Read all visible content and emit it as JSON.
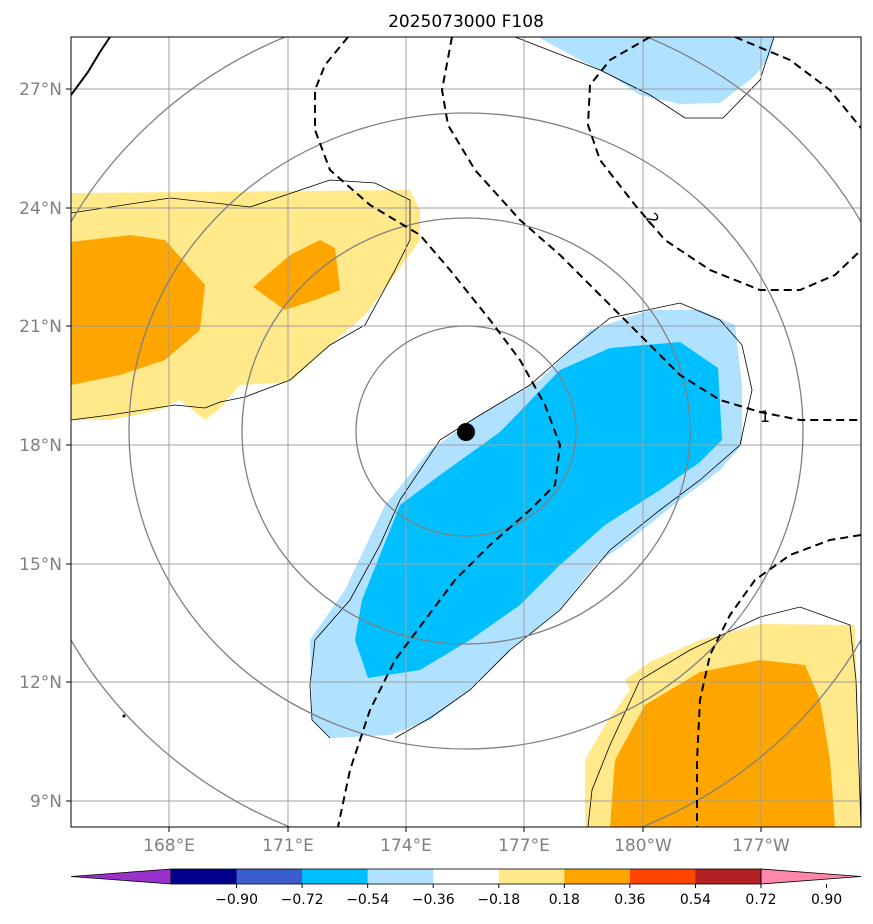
{
  "title": "2025073000 F108",
  "lat_labels": [
    "27°N",
    "24°N",
    "21°N",
    "18°N",
    "15°N",
    "12°N",
    "9°N"
  ],
  "lon_labels": [
    "168°E",
    "171°E",
    "174°E",
    "177°E",
    "180°W",
    "177°W"
  ],
  "colorbar": {
    "colors": [
      "#9932CC",
      "#00008B",
      "#3A5FCD",
      "#00BFFF",
      "#B0E2FF",
      "#FFFFFF",
      "#FFE98A",
      "#FFA500",
      "#FF4500",
      "#B22222",
      "#FF88AA"
    ],
    "ticks": [
      "−0.90",
      "−0.72",
      "−0.54",
      "−0.36",
      "−0.18",
      "0.18",
      "0.36",
      "0.54",
      "0.72",
      "0.90"
    ]
  },
  "contour_labels": [
    "2",
    "1"
  ],
  "storm_center": {
    "lat": 18.3,
    "lon": 175.5
  },
  "colors": {
    "light_blue": "#B0E2FF",
    "deep_sky_blue": "#00BFFF",
    "light_yellow": "#FFE98A",
    "orange": "#FFA500",
    "grid": "#A0A0A0",
    "circle": "#808080"
  }
}
